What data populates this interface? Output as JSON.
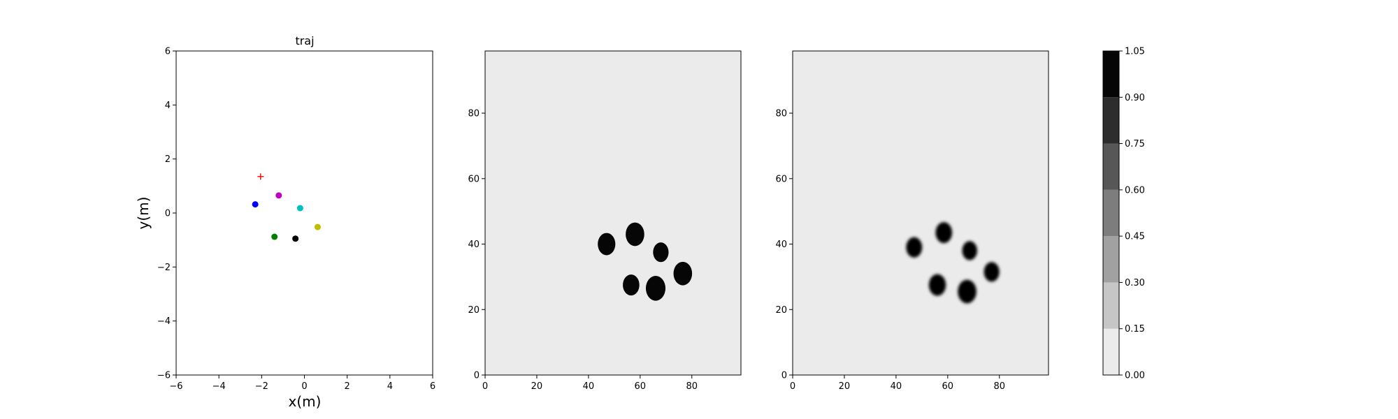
{
  "chart_data": [
    {
      "type": "scatter",
      "title": "traj",
      "xlabel": "x(m)",
      "ylabel": "y(m)",
      "xlim": [
        -6,
        6
      ],
      "ylim": [
        -6,
        6
      ],
      "xticks": [
        -6,
        -4,
        -2,
        0,
        2,
        4,
        6
      ],
      "yticks": [
        -6,
        -4,
        -2,
        0,
        2,
        4,
        6
      ],
      "grid": false,
      "points": [
        {
          "x": -2.05,
          "y": 1.35,
          "color": "#ff0000",
          "marker": "plus"
        },
        {
          "x": -1.2,
          "y": 0.65,
          "color": "#bf00bf",
          "marker": "circle"
        },
        {
          "x": -2.3,
          "y": 0.32,
          "color": "#0000ff",
          "marker": "circle"
        },
        {
          "x": -0.2,
          "y": 0.18,
          "color": "#00bfbf",
          "marker": "circle"
        },
        {
          "x": 0.62,
          "y": -0.52,
          "color": "#bfbf00",
          "marker": "circle"
        },
        {
          "x": -1.4,
          "y": -0.88,
          "color": "#008000",
          "marker": "circle"
        },
        {
          "x": -0.42,
          "y": -0.95,
          "color": "#000000",
          "marker": "circle"
        }
      ]
    },
    {
      "type": "heatmap",
      "title": "",
      "xlim": [
        0,
        99
      ],
      "ylim": [
        0,
        99
      ],
      "xticks": [
        0,
        20,
        40,
        60,
        80
      ],
      "yticks": [
        0,
        20,
        40,
        60,
        80
      ],
      "background_value": 0.0,
      "blobs": [
        {
          "x": 47,
          "y": 40,
          "r": 3.4,
          "value": 1.0
        },
        {
          "x": 58,
          "y": 43,
          "r": 3.6,
          "value": 1.0
        },
        {
          "x": 68,
          "y": 37.5,
          "r": 3.0,
          "value": 1.0
        },
        {
          "x": 76.5,
          "y": 31,
          "r": 3.6,
          "value": 1.0
        },
        {
          "x": 56.5,
          "y": 27.5,
          "r": 3.2,
          "value": 1.0
        },
        {
          "x": 66,
          "y": 26.5,
          "r": 3.8,
          "value": 1.0
        }
      ]
    },
    {
      "type": "heatmap",
      "title": "",
      "xlim": [
        0,
        99
      ],
      "ylim": [
        0,
        99
      ],
      "xticks": [
        0,
        20,
        40,
        60,
        80
      ],
      "yticks": [
        0,
        20,
        40,
        60,
        80
      ],
      "background_value": 0.0,
      "blobs": [
        {
          "x": 47,
          "y": 39,
          "r": 3.1,
          "value": 1.0
        },
        {
          "x": 58.5,
          "y": 43.5,
          "r": 3.2,
          "value": 1.0
        },
        {
          "x": 68.5,
          "y": 38,
          "r": 2.9,
          "value": 1.0
        },
        {
          "x": 77,
          "y": 31.5,
          "r": 3.0,
          "value": 1.0
        },
        {
          "x": 56,
          "y": 27.5,
          "r": 3.3,
          "value": 1.0
        },
        {
          "x": 67.5,
          "y": 25.5,
          "r": 3.6,
          "value": 1.0
        }
      ]
    }
  ],
  "colorbar": {
    "levels": [
      0.0,
      0.15,
      0.3,
      0.45,
      0.6,
      0.75,
      0.9,
      1.05
    ],
    "tick_labels": [
      "0.00",
      "0.15",
      "0.30",
      "0.45",
      "0.60",
      "0.75",
      "0.90",
      "1.05"
    ],
    "colors": [
      "#ebebeb",
      "#c6c6c6",
      "#a1a1a1",
      "#7d7d7d",
      "#575757",
      "#2d2d2d",
      "#060606"
    ]
  }
}
